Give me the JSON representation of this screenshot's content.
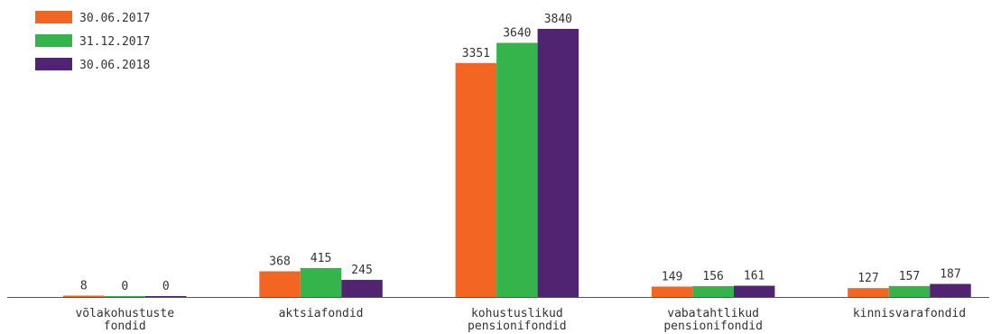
{
  "chart_data": {
    "type": "bar",
    "categories": [
      [
        "võlakohustuste",
        "fondid"
      ],
      [
        "aktsiafondid"
      ],
      [
        "kohustuslikud",
        "pensionifondid"
      ],
      [
        "vabatahtlikud",
        "pensionifondid"
      ],
      [
        "kinnisvarafondid"
      ]
    ],
    "series": [
      {
        "name": "30.06.2017",
        "color": "#f26522",
        "values": [
          8,
          368,
          3351,
          149,
          127
        ]
      },
      {
        "name": "31.12.2017",
        "color": "#34b44a",
        "values": [
          0,
          415,
          3640,
          156,
          157
        ]
      },
      {
        "name": "30.06.2018",
        "color": "#512472",
        "values": [
          0,
          245,
          3840,
          161,
          187
        ]
      }
    ],
    "ylim": [
      0,
      3840
    ],
    "grid": false,
    "legend": "top-left",
    "axis_color": "#555555"
  }
}
